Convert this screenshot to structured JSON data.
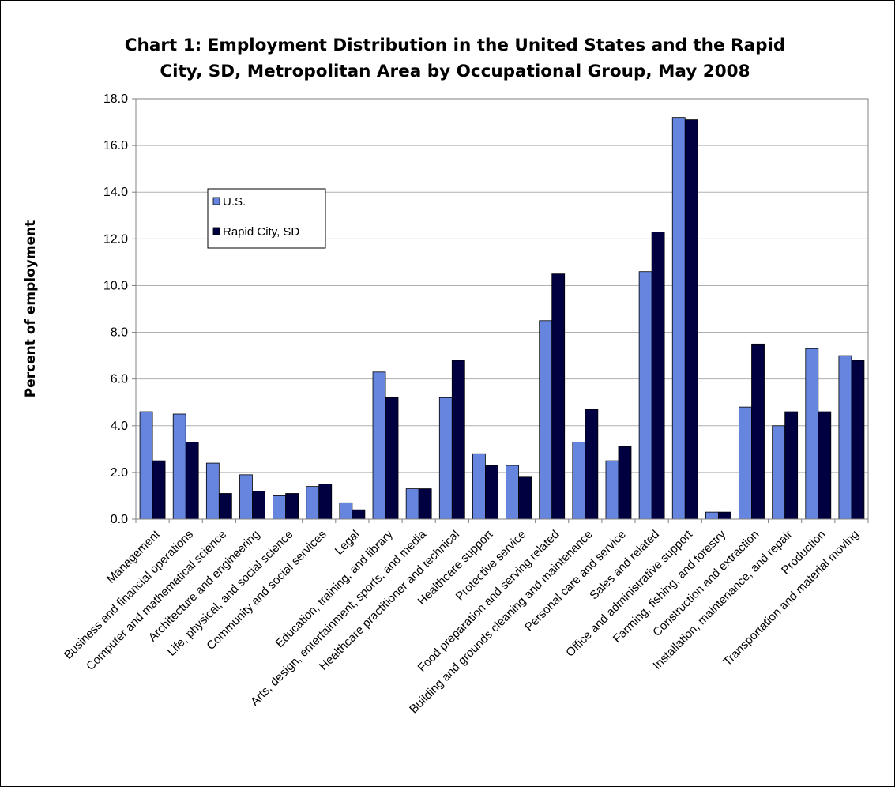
{
  "chart_data": {
    "type": "bar",
    "title_lines": [
      "Chart 1: Employment Distribution in the United States and the Rapid",
      "City, SD, Metropolitan Area by Occupational Group, May 2008"
    ],
    "xlabel": "",
    "ylabel": "Percent of employment",
    "ylim": [
      0,
      18
    ],
    "ytick_step": 2,
    "ytick_labels": [
      "0.0",
      "2.0",
      "4.0",
      "6.0",
      "8.0",
      "10.0",
      "12.0",
      "14.0",
      "16.0",
      "18.0"
    ],
    "grid": true,
    "legend_position": "upper-left",
    "categories": [
      "Management",
      "Business and financial operations",
      "Computer and mathematical science",
      "Architecture and engineering",
      "Life, physical, and social science",
      "Community and social services",
      "Legal",
      "Education, training, and library",
      "Arts, design, entertainment, sports, and media",
      "Healthcare practitioner and technical",
      "Healthcare support",
      "Protective service",
      "Food preparation and serving related",
      "Building and grounds cleaning and maintenance",
      "Personal care and service",
      "Sales and related",
      "Office and administrative support",
      "Farming, fishing, and forestry",
      "Construction and extraction",
      "Installation, maintenance, and repair",
      "Production",
      "Transportation and material moving"
    ],
    "series": [
      {
        "name": "U.S.",
        "color": "#6685DE",
        "values": [
          4.6,
          4.5,
          2.4,
          1.9,
          1.0,
          1.4,
          0.7,
          6.3,
          1.3,
          5.2,
          2.8,
          2.3,
          8.5,
          3.3,
          2.5,
          10.6,
          17.2,
          0.3,
          4.8,
          4.0,
          7.3,
          7.0
        ]
      },
      {
        "name": "Rapid City, SD",
        "color": "#000040",
        "values": [
          2.5,
          3.3,
          1.1,
          1.2,
          1.1,
          1.5,
          0.4,
          5.2,
          1.3,
          6.8,
          2.3,
          1.8,
          10.5,
          4.7,
          3.1,
          12.3,
          17.1,
          0.3,
          7.5,
          4.6,
          4.6,
          6.8
        ]
      }
    ]
  }
}
